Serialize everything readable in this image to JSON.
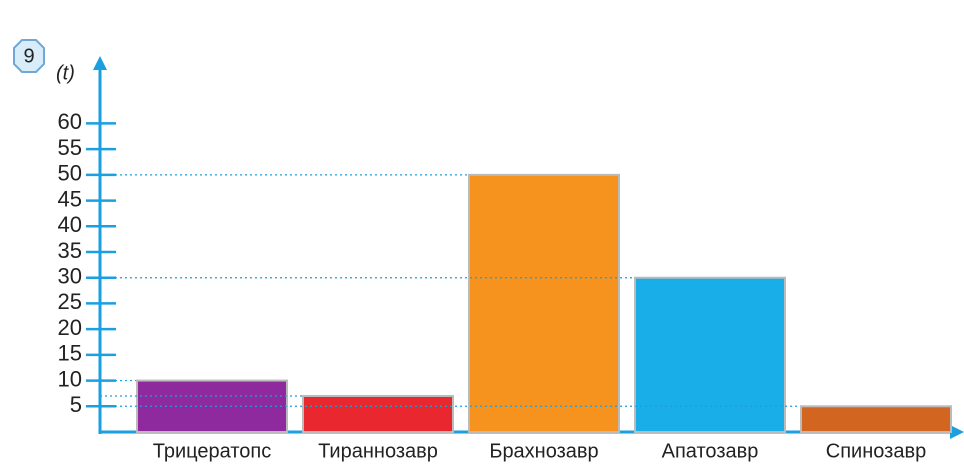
{
  "badge": "9",
  "chart_data": {
    "type": "bar",
    "y_label": "(t)",
    "categories": [
      "Трицератопс",
      "Тираннозавр",
      "Брахнозавр",
      "Апатозавр",
      "Спинозавр"
    ],
    "values": [
      10,
      7,
      50,
      30,
      5
    ],
    "colors": [
      "#8e2a9e",
      "#e8282e",
      "#f6931e",
      "#1aaee8",
      "#d2651f"
    ],
    "ylim": [
      0,
      70
    ],
    "yticks": [
      5,
      10,
      15,
      20,
      25,
      30,
      35,
      40,
      45,
      50,
      55,
      60
    ],
    "grid": false
  }
}
